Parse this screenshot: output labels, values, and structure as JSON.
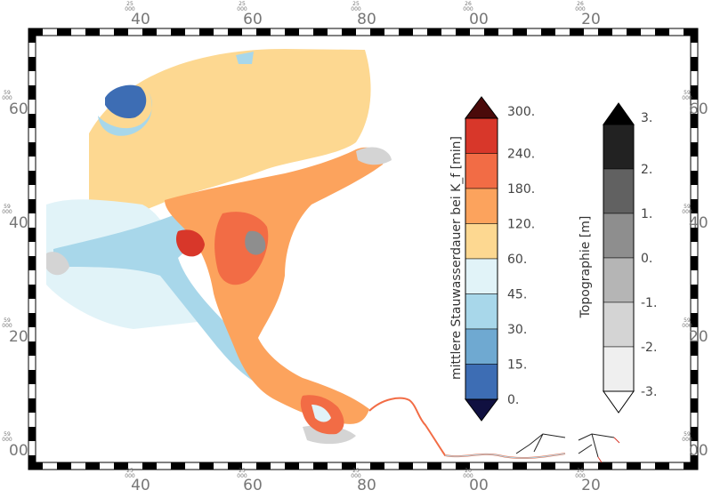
{
  "frame": {
    "x_ticks": [
      {
        "small": "25\n000",
        "main": "40"
      },
      {
        "small": "25\n000",
        "main": "60"
      },
      {
        "small": "25\n000",
        "main": "80"
      },
      {
        "small": "26\n000",
        "main": "00"
      },
      {
        "small": "26\n000",
        "main": "20"
      }
    ],
    "y_ticks": [
      {
        "small": "59\n000",
        "main": "60"
      },
      {
        "small": "59\n000",
        "main": "40"
      },
      {
        "small": "59\n000",
        "main": "20"
      },
      {
        "small": "59\n000",
        "main": "00"
      }
    ]
  },
  "colorbar_duration": {
    "title": "mittlere Stauwasserdauer bei K_f [min]",
    "labels": [
      "300.",
      "240.",
      "180.",
      "120.",
      "60.",
      "45.",
      "30.",
      "15.",
      "0."
    ],
    "colors": [
      "#d8372a",
      "#f26c45",
      "#fca35d",
      "#fdd891",
      "#e1f3f8",
      "#a8d7ea",
      "#6fa9d1",
      "#3d6db4"
    ],
    "cap_top_color": "#4a0a0a",
    "cap_bottom_color": "#101040"
  },
  "colorbar_topo": {
    "title": "Topographie [m]",
    "labels": [
      "3.",
      "2.",
      "1.",
      "0.",
      "-1.",
      "-2.",
      "-3."
    ],
    "colors": [
      "#222222",
      "#616161",
      "#8e8e8e",
      "#b5b5b5",
      "#d4d4d4",
      "#efefef"
    ],
    "cap_top_color": "#000000",
    "cap_bottom_color": "#ffffff"
  },
  "colors": {
    "sea_flood": "#fdd891",
    "channel": "#a8d7ea",
    "shallow": "#e1f3f8",
    "deep_blue": "#3d6db4",
    "land_high": "#f26c45",
    "land_mid": "#fca35d",
    "land_dark": "#d8372a",
    "topo_gray": "#8e8e8e",
    "topo_light": "#d4d4d4"
  }
}
